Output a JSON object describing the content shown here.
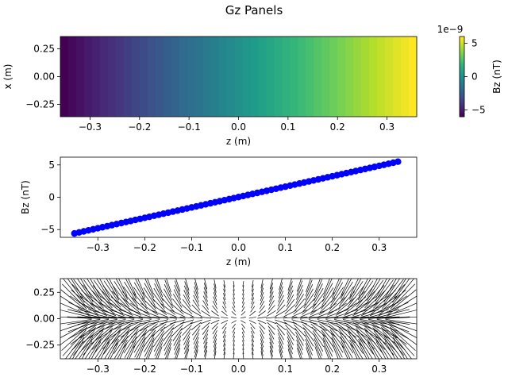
{
  "figure": {
    "title": "Gz Panels"
  },
  "chart_data": [
    {
      "type": "heatmap",
      "title": "",
      "xlabel": "z (m)",
      "ylabel": "x (m)",
      "xlim": [
        -0.36,
        0.36
      ],
      "ylim": [
        -0.36,
        0.36
      ],
      "x_ticks": [
        -0.3,
        -0.2,
        -0.1,
        0.0,
        0.1,
        0.2,
        0.3
      ],
      "x_tick_labels": [
        "−0.3",
        "−0.2",
        "−0.1",
        "0.0",
        "0.1",
        "0.2",
        "0.3"
      ],
      "y_ticks": [
        0.25,
        0.0,
        -0.25
      ],
      "y_tick_labels": [
        "0.25",
        "0.00",
        "−0.25"
      ],
      "colormap": "viridis",
      "columns": 45,
      "value_range": [
        -6e-09,
        6e-09
      ],
      "note_values_vary_linearly_with_z": true,
      "colorbar": {
        "label": "Bz (nT)",
        "offset_label": "1e−9",
        "ticks": [
          5,
          0,
          -5
        ],
        "tick_labels": [
          "5",
          "0",
          "−5"
        ],
        "range": [
          -6,
          6
        ]
      }
    },
    {
      "type": "scatter",
      "title": "",
      "xlabel": "z (m)",
      "ylabel": "Bz (nT)",
      "xlim": [
        -0.38,
        0.38
      ],
      "ylim": [
        -6.2,
        6.2
      ],
      "x_ticks": [
        -0.3,
        -0.2,
        -0.1,
        0.0,
        0.1,
        0.2,
        0.3
      ],
      "x_tick_labels": [
        "−0.3",
        "−0.2",
        "−0.1",
        "0.0",
        "0.1",
        "0.2",
        "0.3"
      ],
      "y_ticks": [
        5,
        0,
        -5
      ],
      "y_tick_labels": [
        "5",
        "0",
        "−5"
      ],
      "marker_color": "#0000ff",
      "series": [
        {
          "x_start": -0.35,
          "x_end": 0.34,
          "y_start": -5.6,
          "y_end": 5.5,
          "n_points": 70
        }
      ]
    },
    {
      "type": "quiver",
      "title": "",
      "xlabel": "",
      "ylabel": "",
      "xlim": [
        -0.38,
        0.38
      ],
      "ylim": [
        -0.38,
        0.38
      ],
      "x_ticks": [
        -0.3,
        -0.2,
        -0.1,
        0.0,
        0.1,
        0.2,
        0.3
      ],
      "x_tick_labels": [
        "−0.3",
        "−0.2",
        "−0.1",
        "0.0",
        "0.1",
        "0.2",
        "0.3"
      ],
      "y_ticks": [
        0.25,
        0.0,
        -0.25
      ],
      "y_tick_labels": [
        "0.25",
        "0.00",
        "−0.25"
      ],
      "arrow_color": "#000000",
      "grid_x": [
        -0.35,
        -0.33,
        -0.31,
        -0.29,
        -0.27,
        -0.25,
        -0.23,
        -0.21,
        -0.19,
        -0.17,
        -0.15,
        -0.13,
        -0.11,
        -0.09,
        -0.07,
        -0.05,
        -0.03,
        -0.01,
        0.01,
        0.03,
        0.05,
        0.07,
        0.09,
        0.11,
        0.13,
        0.15,
        0.17,
        0.19,
        0.21,
        0.23,
        0.25,
        0.27,
        0.29,
        0.31,
        0.33,
        0.35
      ],
      "grid_y": [
        -0.35,
        -0.31,
        -0.27,
        -0.23,
        -0.19,
        -0.15,
        -0.11,
        -0.07,
        -0.03,
        0.01,
        0.05,
        0.09,
        0.13,
        0.17,
        0.21,
        0.25,
        0.29,
        0.33
      ]
    }
  ]
}
